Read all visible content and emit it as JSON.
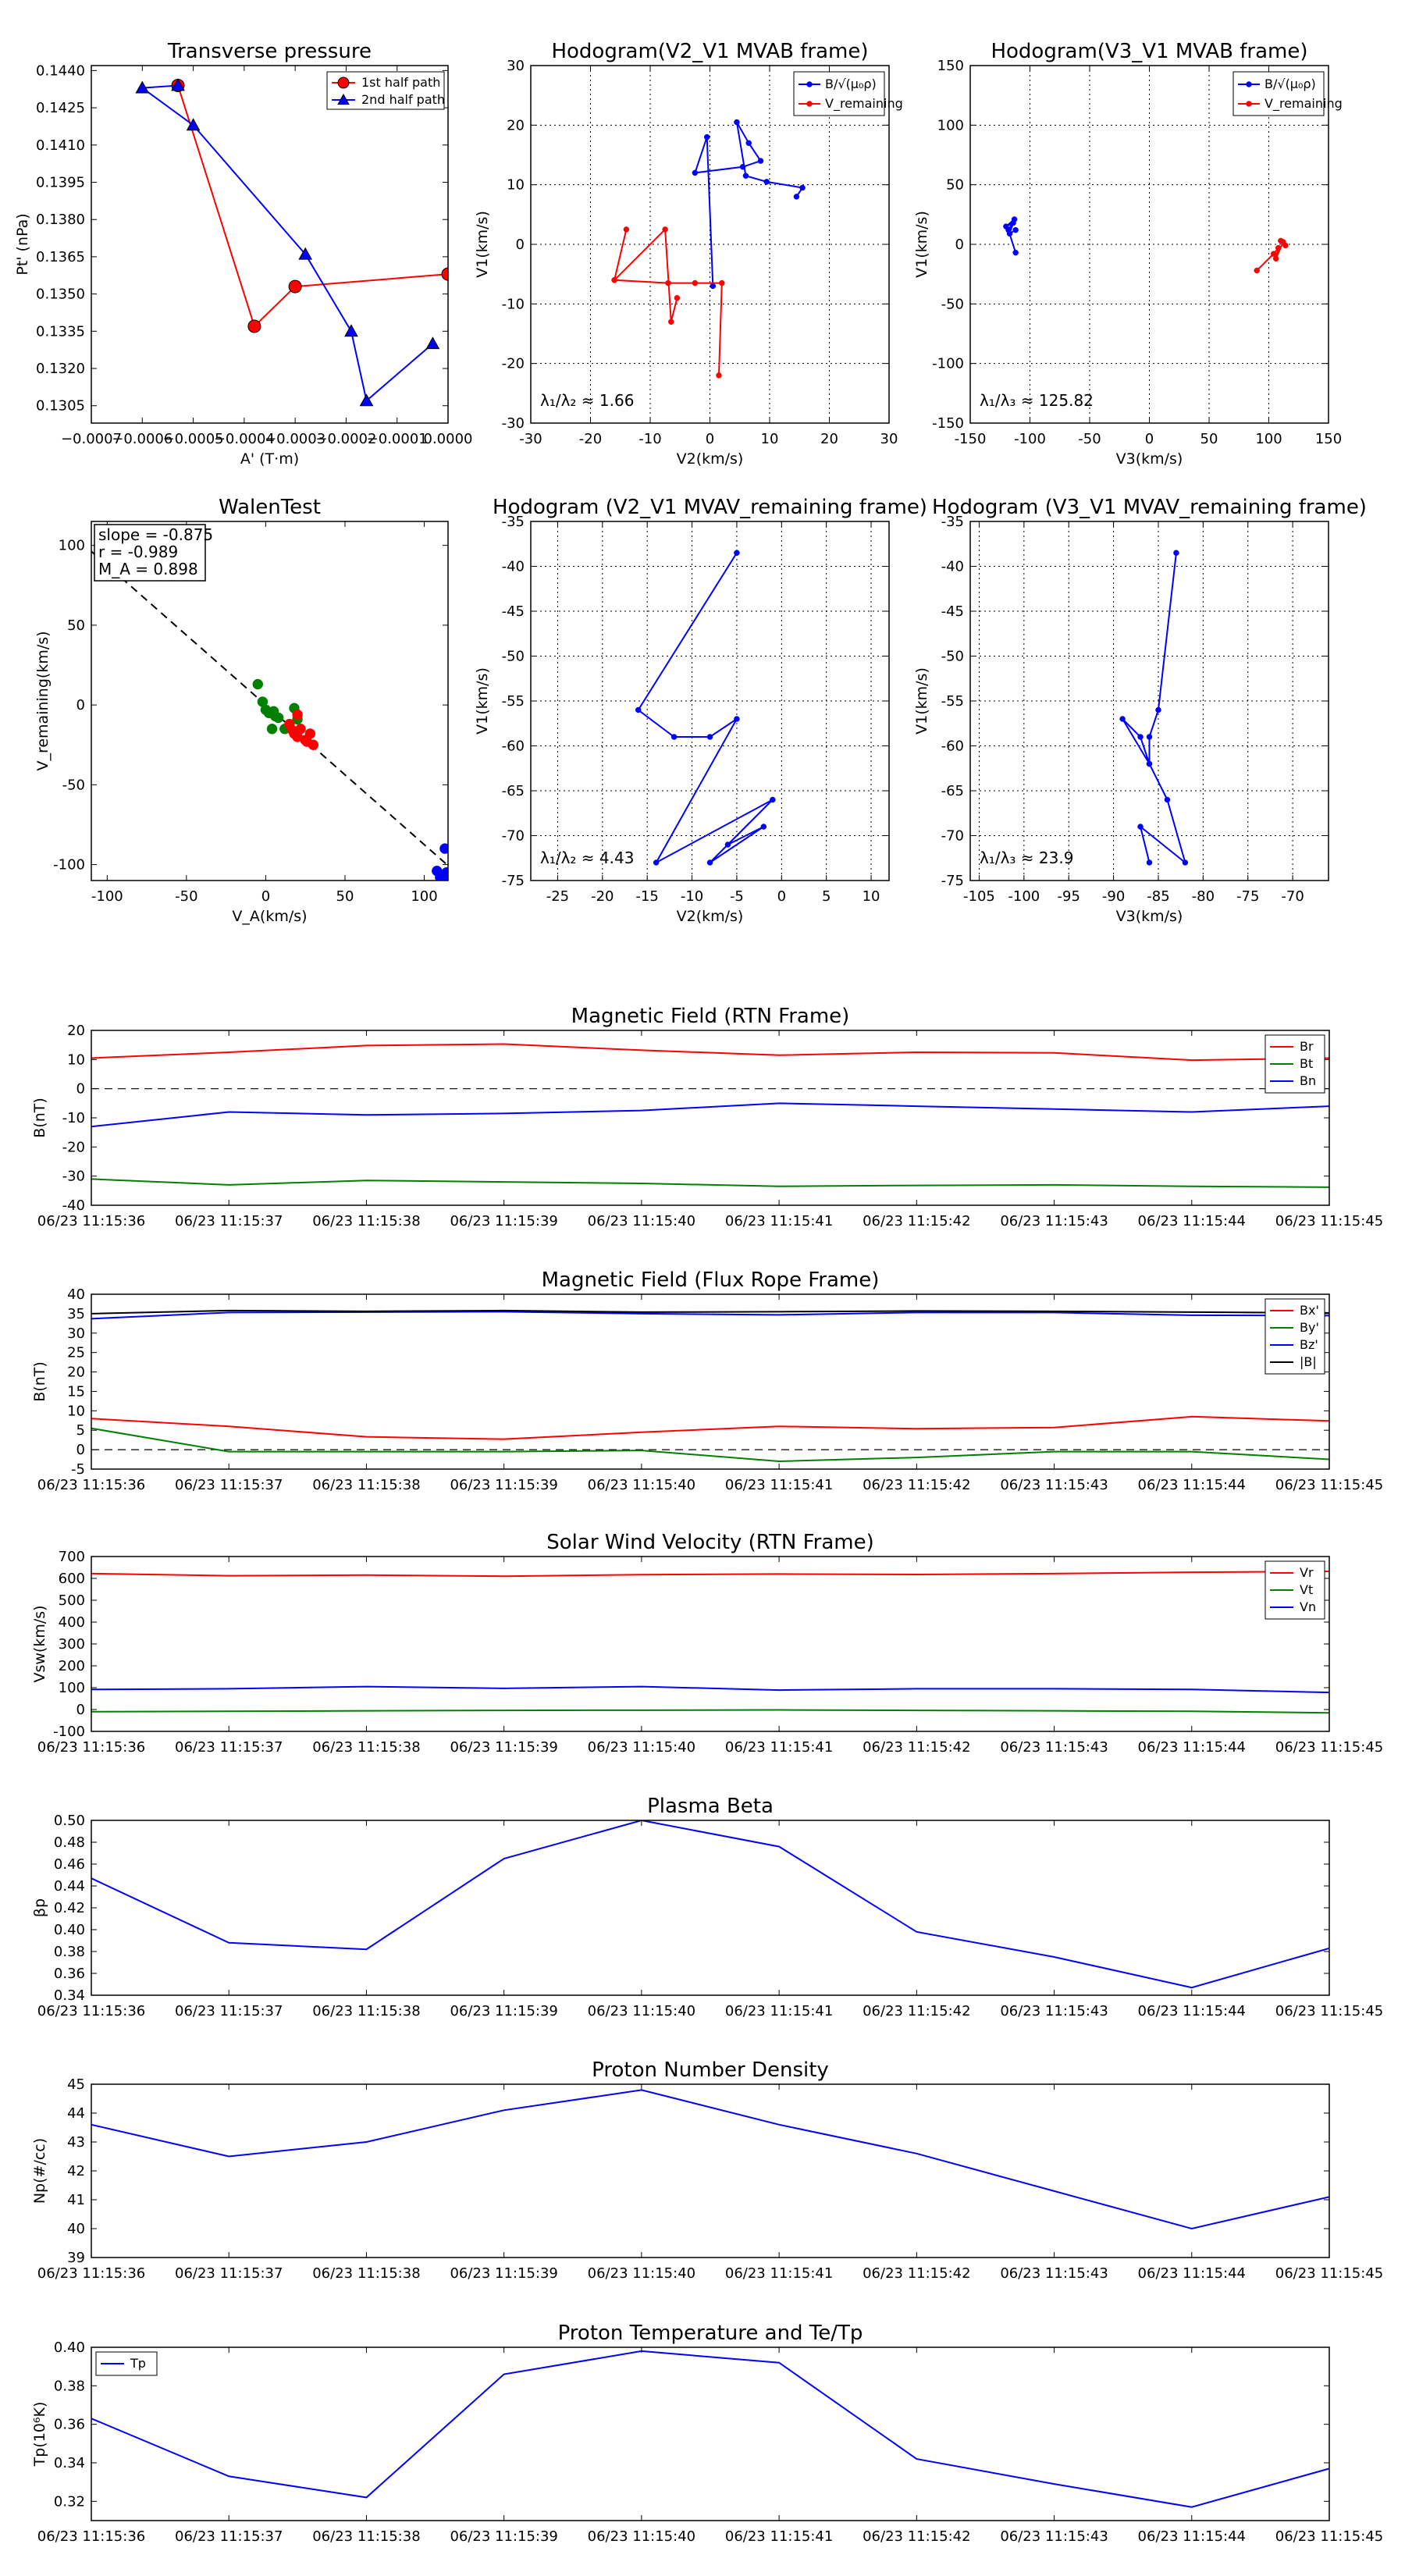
{
  "chart_data": [
    {
      "id": "pt",
      "type": "line",
      "title": "Transverse pressure",
      "xlabel": "A' (T·m)",
      "ylabel": "Pt' (nPa)",
      "xlim": [
        -0.0007,
        0.0
      ],
      "ylim": [
        0.1298,
        0.1442
      ],
      "xticks": [
        -0.0007,
        -0.0006,
        -0.0005,
        -0.0004,
        -0.0003,
        -0.0002,
        -0.0001,
        0.0
      ],
      "xtick_labels": [
        "−0.0007",
        "−0.0006",
        "−0.0005",
        "−0.0004",
        "−0.0003",
        "−0.0002",
        "−0.0001",
        "0.0000"
      ],
      "yticks": [
        0.1305,
        0.132,
        0.1335,
        0.135,
        0.1365,
        0.138,
        0.1395,
        0.141,
        0.1425,
        0.144
      ],
      "ytick_labels": [
        "0.1305",
        "0.1320",
        "0.1335",
        "0.1350",
        "0.1365",
        "0.1380",
        "0.1395",
        "0.1410",
        "0.1425",
        "0.1440"
      ],
      "grid": false,
      "legend": "top-right",
      "series": [
        {
          "name": "1st half path",
          "color": "#ff0000",
          "marker": "circle",
          "x": [
            -0.00053,
            -0.00038,
            -0.0003,
            0.0
          ],
          "y": [
            0.1434,
            0.1337,
            0.1353,
            0.1358
          ]
        },
        {
          "name": "2nd half path",
          "color": "#0000ff",
          "marker": "triangle",
          "x": [
            -0.00053,
            -0.0006,
            -0.0005,
            -0.00028,
            -0.00019,
            -0.00016,
            -3e-05
          ],
          "y": [
            0.1434,
            0.1433,
            0.1418,
            0.1366,
            0.1335,
            0.1307,
            0.133
          ]
        }
      ]
    },
    {
      "id": "hodo1",
      "type": "line",
      "title": "Hodogram(V2_V1 MVAB frame)",
      "xlabel": "V2(km/s)",
      "ylabel": "V1(km/s)",
      "xlim": [
        -30,
        30
      ],
      "ylim": [
        -30,
        30
      ],
      "xticks": [
        -30,
        -20,
        -10,
        0,
        10,
        20,
        30
      ],
      "yticks": [
        -30,
        -20,
        -10,
        0,
        10,
        20,
        30
      ],
      "grid": true,
      "legend": "top-right",
      "annotation": "λ₁/λ₂ ≈ 1.66",
      "series": [
        {
          "name": "B/√(μ₀ρ)",
          "color": "#0000ff",
          "marker": "dot",
          "x": [
            0.5,
            -0.5,
            -2.5,
            5.5,
            8.5,
            6.5,
            4.5,
            6,
            9.5,
            15.5,
            14.5
          ],
          "y": [
            -7,
            18,
            12,
            13,
            14,
            17,
            20.5,
            11.5,
            10.5,
            9.5,
            8
          ]
        },
        {
          "name": "V_remaining",
          "color": "#ff0000",
          "marker": "dot",
          "x": [
            1.5,
            2,
            -2.5,
            -7,
            -16,
            -14,
            -16,
            -7.5,
            -6.5,
            -5.5
          ],
          "y": [
            -22,
            -6.5,
            -6.5,
            -6.5,
            -6,
            2.5,
            -6,
            2.5,
            -13,
            -9
          ]
        }
      ]
    },
    {
      "id": "hodo2",
      "type": "line",
      "title": "Hodogram(V3_V1 MVAB frame)",
      "xlabel": "V3(km/s)",
      "ylabel": "V1(km/s)",
      "xlim": [
        -150,
        150
      ],
      "ylim": [
        -150,
        150
      ],
      "xticks": [
        -150,
        -100,
        -50,
        0,
        50,
        100,
        150
      ],
      "yticks": [
        -150,
        -100,
        -50,
        0,
        50,
        100,
        150
      ],
      "grid": true,
      "legend": "top-right",
      "annotation": "λ₁/λ₃ ≈ 125.82",
      "series": [
        {
          "name": "B/√(μ₀ρ)",
          "color": "#0000ff",
          "marker": "dot",
          "x": [
            -112,
            -118,
            -113,
            -120,
            -114,
            -117,
            -112
          ],
          "y": [
            -7,
            12,
            21,
            15,
            18,
            9,
            12
          ]
        },
        {
          "name": "V_remaining",
          "color": "#ff0000",
          "marker": "dot",
          "x": [
            90,
            104,
            108,
            106,
            112,
            114,
            110
          ],
          "y": [
            -22,
            -8,
            -3,
            -12,
            2,
            -1,
            3
          ]
        }
      ]
    },
    {
      "id": "walen",
      "type": "scatter",
      "title": "WalenTest",
      "xlabel": "V_A(km/s)",
      "ylabel": "V_remaining(km/s)",
      "xlim": [
        -110,
        115
      ],
      "ylim": [
        -110,
        115
      ],
      "xticks": [
        -100,
        -50,
        0,
        50,
        100
      ],
      "yticks": [
        -100,
        -50,
        0,
        50,
        100
      ],
      "grid": false,
      "fit_line": {
        "slope": -0.875,
        "intercept": 0
      },
      "annotation_lines": [
        "slope = -0.875",
        "r = -0.989",
        "M_A = 0.898"
      ],
      "series": [
        {
          "name": "green",
          "color": "#008000",
          "x": [
            -5,
            -2,
            0,
            2,
            5,
            8,
            12,
            15,
            18,
            20,
            4,
            6
          ],
          "y": [
            13,
            2,
            -3,
            -5,
            -4,
            -8,
            -15,
            -14,
            -2,
            -9,
            -15,
            -7
          ]
        },
        {
          "name": "red",
          "color": "#ff0000",
          "x": [
            15,
            18,
            20,
            22,
            25,
            28,
            30,
            20,
            17,
            26
          ],
          "y": [
            -12,
            -18,
            -20,
            -15,
            -22,
            -18,
            -25,
            -6,
            -16,
            -23
          ]
        },
        {
          "name": "blue",
          "color": "#0000ff",
          "x": [
            108,
            112,
            115,
            110,
            114,
            113
          ],
          "y": [
            -104,
            -107,
            -110,
            -108,
            -105,
            -90
          ]
        }
      ]
    },
    {
      "id": "hodo3",
      "type": "line",
      "title": "Hodogram (V2_V1 MVAV_remaining frame)",
      "xlabel": "V2(km/s)",
      "ylabel": "V1(km/s)",
      "xlim": [
        -28,
        12
      ],
      "ylim": [
        -75,
        -35
      ],
      "xticks": [
        -25,
        -20,
        -15,
        -10,
        -5,
        0,
        5,
        10
      ],
      "yticks": [
        -75,
        -70,
        -65,
        -60,
        -55,
        -50,
        -45,
        -40,
        -35
      ],
      "grid": true,
      "annotation": "λ₁/λ₂ ≈ 4.43",
      "series": [
        {
          "name": "blue",
          "color": "#0000ff",
          "x": [
            -5,
            -16,
            -12,
            -8,
            -5,
            -14,
            -1,
            -8,
            -2,
            -6
          ],
          "y": [
            -38.5,
            -56,
            -59,
            -59,
            -57,
            -73,
            -66,
            -73,
            -69,
            -71
          ]
        }
      ]
    },
    {
      "id": "hodo4",
      "type": "line",
      "title": "Hodogram (V3_V1 MVAV_remaining frame)",
      "xlabel": "V3(km/s)",
      "ylabel": "V1(km/s)",
      "xlim": [
        -106,
        -66
      ],
      "ylim": [
        -75,
        -35
      ],
      "xticks": [
        -105,
        -100,
        -95,
        -90,
        -85,
        -80,
        -75,
        -70
      ],
      "yticks": [
        -75,
        -70,
        -65,
        -60,
        -55,
        -50,
        -45,
        -40,
        -35
      ],
      "grid": true,
      "annotation": "λ₁/λ₃ ≈ 23.9",
      "series": [
        {
          "name": "blue",
          "color": "#0000ff",
          "x": [
            -83,
            -85,
            -86,
            -86,
            -87,
            -89,
            -86,
            -84,
            -82,
            -87,
            -86
          ],
          "y": [
            -38.5,
            -56,
            -59,
            -62,
            -59,
            -57,
            -62,
            -66,
            -73,
            -69,
            -73
          ]
        }
      ]
    },
    {
      "id": "bfield",
      "type": "line",
      "title": "Magnetic Field (RTN Frame)",
      "ylabel": "B(nT)",
      "categories": [
        "06/23 11:15:36",
        "06/23 11:15:37",
        "06/23 11:15:38",
        "06/23 11:15:39",
        "06/23 11:15:40",
        "06/23 11:15:41",
        "06/23 11:15:42",
        "06/23 11:15:43",
        "06/23 11:15:44",
        "06/23 11:15:45"
      ],
      "ylim": [
        -40,
        20
      ],
      "yticks": [
        -40,
        -30,
        -20,
        -10,
        0,
        10,
        20
      ],
      "zero_line": true,
      "legend": "top-right",
      "series": [
        {
          "name": "Br",
          "color": "#ff0000",
          "values": [
            10.5,
            12.5,
            14.8,
            15.3,
            13.2,
            11.5,
            12.5,
            12.3,
            9.8,
            10.5
          ]
        },
        {
          "name": "Bt",
          "color": "#008000",
          "values": [
            -31,
            -33,
            -31.5,
            -32,
            -32.5,
            -33.5,
            -33.2,
            -33,
            -33.5,
            -33.8
          ]
        },
        {
          "name": "Bn",
          "color": "#0000ff",
          "values": [
            -13,
            -8,
            -9,
            -8.5,
            -7.5,
            -5,
            -6,
            -7,
            -8,
            -6
          ]
        }
      ]
    },
    {
      "id": "bflux",
      "type": "line",
      "title": "Magnetic Field (Flux Rope Frame)",
      "ylabel": "B(nT)",
      "categories": [
        "06/23 11:15:36",
        "06/23 11:15:37",
        "06/23 11:15:38",
        "06/23 11:15:39",
        "06/23 11:15:40",
        "06/23 11:15:41",
        "06/23 11:15:42",
        "06/23 11:15:43",
        "06/23 11:15:44",
        "06/23 11:15:45"
      ],
      "ylim": [
        -5,
        40
      ],
      "yticks": [
        -5,
        0,
        5,
        10,
        15,
        20,
        25,
        30,
        35,
        40
      ],
      "zero_line": true,
      "legend": "top-right",
      "series": [
        {
          "name": "Bx'",
          "color": "#ff0000",
          "values": [
            8,
            6,
            3.3,
            2.7,
            4.5,
            6,
            5.4,
            5.7,
            8.5,
            7.4
          ]
        },
        {
          "name": "By'",
          "color": "#008000",
          "values": [
            5.5,
            -0.5,
            -0.5,
            -0.5,
            -0.2,
            -3,
            -2,
            -0.5,
            -0.5,
            -2.5
          ]
        },
        {
          "name": "Bz'",
          "color": "#0000ff",
          "values": [
            33.7,
            35.3,
            35.4,
            35.5,
            35,
            34.7,
            35.3,
            35.3,
            34.6,
            34.5
          ]
        },
        {
          "name": "|B|",
          "color": "#000000",
          "values": [
            35,
            35.8,
            35.6,
            35.8,
            35.4,
            35.5,
            35.7,
            35.6,
            35.4,
            35.2
          ]
        }
      ]
    },
    {
      "id": "vsw",
      "type": "line",
      "title": "Solar Wind Velocity (RTN Frame)",
      "ylabel": "Vsw(km/s)",
      "categories": [
        "06/23 11:15:36",
        "06/23 11:15:37",
        "06/23 11:15:38",
        "06/23 11:15:39",
        "06/23 11:15:40",
        "06/23 11:15:41",
        "06/23 11:15:42",
        "06/23 11:15:43",
        "06/23 11:15:44",
        "06/23 11:15:45"
      ],
      "ylim": [
        -100,
        700
      ],
      "yticks": [
        -100,
        0,
        100,
        200,
        300,
        400,
        500,
        600,
        700
      ],
      "legend": "top-right",
      "series": [
        {
          "name": "Vr",
          "color": "#ff0000",
          "values": [
            622,
            612,
            615,
            610,
            617,
            620,
            618,
            622,
            628,
            632
          ]
        },
        {
          "name": "Vt",
          "color": "#008000",
          "values": [
            -10,
            -8,
            -6,
            -4,
            -3,
            -2,
            -4,
            -6,
            -8,
            -15
          ]
        },
        {
          "name": "Vn",
          "color": "#0000ff",
          "values": [
            92,
            95,
            105,
            97,
            105,
            89,
            95,
            95,
            92,
            78
          ]
        }
      ]
    },
    {
      "id": "beta",
      "type": "line",
      "title": "Plasma Beta",
      "ylabel": "βp",
      "categories": [
        "06/23 11:15:36",
        "06/23 11:15:37",
        "06/23 11:15:38",
        "06/23 11:15:39",
        "06/23 11:15:40",
        "06/23 11:15:41",
        "06/23 11:15:42",
        "06/23 11:15:43",
        "06/23 11:15:44",
        "06/23 11:15:45"
      ],
      "ylim": [
        0.34,
        0.5
      ],
      "yticks": [
        0.34,
        0.36,
        0.38,
        0.4,
        0.42,
        0.44,
        0.46,
        0.48,
        0.5
      ],
      "series": [
        {
          "name": "beta",
          "color": "#0000ff",
          "values": [
            0.447,
            0.388,
            0.382,
            0.465,
            0.5,
            0.476,
            0.398,
            0.375,
            0.347,
            0.383
          ]
        }
      ]
    },
    {
      "id": "np",
      "type": "line",
      "title": "Proton Number Density",
      "ylabel": "Np(#/cc)",
      "categories": [
        "06/23 11:15:36",
        "06/23 11:15:37",
        "06/23 11:15:38",
        "06/23 11:15:39",
        "06/23 11:15:40",
        "06/23 11:15:41",
        "06/23 11:15:42",
        "06/23 11:15:43",
        "06/23 11:15:44",
        "06/23 11:15:45"
      ],
      "ylim": [
        39,
        45
      ],
      "yticks": [
        39,
        40,
        41,
        42,
        43,
        44,
        45
      ],
      "series": [
        {
          "name": "Np",
          "color": "#0000ff",
          "values": [
            43.6,
            42.5,
            43.0,
            44.1,
            44.8,
            43.6,
            42.6,
            41.3,
            40.0,
            41.1
          ]
        }
      ]
    },
    {
      "id": "tp",
      "type": "line",
      "title": "Proton Temperature and Te/Tp",
      "ylabel": "Tp(10⁶K)",
      "categories": [
        "06/23 11:15:36",
        "06/23 11:15:37",
        "06/23 11:15:38",
        "06/23 11:15:39",
        "06/23 11:15:40",
        "06/23 11:15:41",
        "06/23 11:15:42",
        "06/23 11:15:43",
        "06/23 11:15:44",
        "06/23 11:15:45"
      ],
      "ylim": [
        0.31,
        0.4
      ],
      "yticks": [
        0.32,
        0.34,
        0.36,
        0.38,
        0.4
      ],
      "legend": "top-left",
      "series": [
        {
          "name": "Tp",
          "color": "#0000ff",
          "values": [
            0.363,
            0.333,
            0.322,
            0.386,
            0.398,
            0.392,
            0.342,
            0.329,
            0.317,
            0.337
          ]
        }
      ]
    }
  ]
}
